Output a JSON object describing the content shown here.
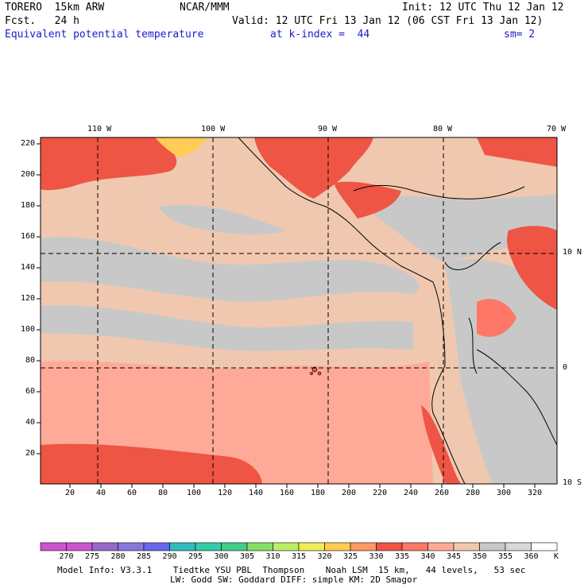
{
  "header": {
    "model": "TORERO  15km ARW",
    "center": "NCAR/MMM",
    "init": "Init: 12 UTC Thu 12 Jan 12",
    "fcst": "Fcst.   24 h",
    "valid": "Valid: 12 UTC Fri 13 Jan 12 (06 CST Fri 13 Jan 12)",
    "field": "Equivalent potential temperature",
    "level": "at k-index =  44",
    "smooth": "sm= 2"
  },
  "map": {
    "top_lon_labels": [
      "110 W",
      "100 W",
      "90 W",
      "80 W",
      "70 W"
    ],
    "right_lat_labels": [
      "10 N",
      "0",
      "10 S"
    ],
    "y_ticks": [
      "20",
      "40",
      "60",
      "80",
      "100",
      "120",
      "140",
      "160",
      "180",
      "200",
      "220"
    ],
    "x_ticks": [
      "20",
      "40",
      "60",
      "80",
      "100",
      "120",
      "140",
      "160",
      "180",
      "200",
      "220",
      "240",
      "260",
      "280",
      "300",
      "320"
    ]
  },
  "colorbar": {
    "labels": [
      "270",
      "275",
      "280",
      "285",
      "290",
      "295",
      "300",
      "305",
      "310",
      "315",
      "320",
      "325",
      "330",
      "335",
      "340",
      "345",
      "350",
      "355",
      "360"
    ],
    "unit": "K",
    "colors": [
      "#cc55cc",
      "#9966cc",
      "#8877dd",
      "#6666ee",
      "#33bbbb",
      "#33ccaa",
      "#44cc88",
      "#88dd66",
      "#bbee66",
      "#eeee55",
      "#ffcc55",
      "#ff9966",
      "#ee5544",
      "#ff7766",
      "#ffaa99",
      "#f0c8b0",
      "#c8c8c8",
      "#d8d8d8",
      "#ffffff"
    ]
  },
  "footer": {
    "line1": "Model Info: V3.3.1    Tiedtke YSU PBL  Thompson    Noah LSM  15 km,   44 levels,   53 sec",
    "line2": "LW: Godd SW: Goddard DIFF: simple KM: 2D Smagor"
  }
}
